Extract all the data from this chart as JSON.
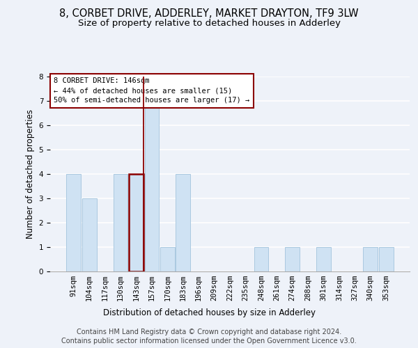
{
  "title": "8, CORBET DRIVE, ADDERLEY, MARKET DRAYTON, TF9 3LW",
  "subtitle": "Size of property relative to detached houses in Adderley",
  "xlabel": "Distribution of detached houses by size in Adderley",
  "ylabel": "Number of detached properties",
  "footnote1": "Contains HM Land Registry data © Crown copyright and database right 2024.",
  "footnote2": "Contains public sector information licensed under the Open Government Licence v3.0.",
  "bins": [
    "91sqm",
    "104sqm",
    "117sqm",
    "130sqm",
    "143sqm",
    "157sqm",
    "170sqm",
    "183sqm",
    "196sqm",
    "209sqm",
    "222sqm",
    "235sqm",
    "248sqm",
    "261sqm",
    "274sqm",
    "288sqm",
    "301sqm",
    "314sqm",
    "327sqm",
    "340sqm",
    "353sqm"
  ],
  "heights": [
    4,
    3,
    0,
    4,
    4,
    7,
    1,
    4,
    0,
    0,
    0,
    0,
    1,
    0,
    1,
    0,
    1,
    0,
    0,
    1,
    1
  ],
  "bar_color": "#cfe2f3",
  "bar_edge_color": "#aac8e0",
  "highlight_bin_index": 4,
  "highlight_color": "#8b0000",
  "annotation_title": "8 CORBET DRIVE: 146sqm",
  "annotation_line1": "← 44% of detached houses are smaller (15)",
  "annotation_line2": "50% of semi-detached houses are larger (17) →",
  "ylim": [
    0,
    8
  ],
  "yticks": [
    0,
    1,
    2,
    3,
    4,
    5,
    6,
    7,
    8
  ],
  "background_color": "#eef2f9",
  "grid_color": "#ffffff",
  "title_fontsize": 10.5,
  "subtitle_fontsize": 9.5,
  "axis_label_fontsize": 8.5,
  "tick_fontsize": 7.5,
  "footnote_fontsize": 7.0
}
